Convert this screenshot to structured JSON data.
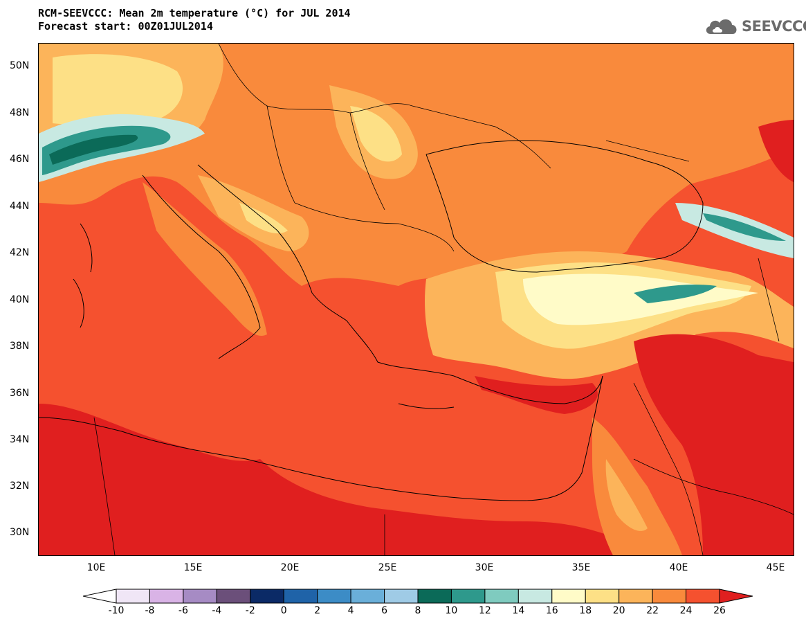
{
  "title": {
    "line1": "RCM-SEEVCCC: Mean 2m temperature (°C) for JUL 2014",
    "line2": "Forecast start: 00Z01JUL2014"
  },
  "logo": {
    "text": "SEEVCCC",
    "icon": "cloud-logo-icon"
  },
  "map": {
    "lat_labels": [
      "50N",
      "48N",
      "46N",
      "44N",
      "42N",
      "40N",
      "38N",
      "36N",
      "34N",
      "32N",
      "30N"
    ],
    "lon_labels": [
      "10E",
      "15E",
      "20E",
      "25E",
      "30E",
      "35E",
      "40E",
      "45E"
    ],
    "lon_range": [
      7,
      46
    ],
    "lat_range": [
      29,
      51
    ],
    "variable": "Mean 2m temperature",
    "unit": "°C"
  },
  "colorbar": {
    "labels": [
      "-10",
      "-8",
      "-6",
      "-4",
      "-2",
      "0",
      "2",
      "4",
      "6",
      "8",
      "10",
      "12",
      "14",
      "16",
      "18",
      "20",
      "22",
      "24",
      "26"
    ],
    "colors": [
      "#ffffff",
      "#f0e6f6",
      "#d9b3e6",
      "#a68bc4",
      "#6b4f7a",
      "#0b2a66",
      "#1f63a8",
      "#3c8cc6",
      "#6aafd9",
      "#9fcbe6",
      "#0b6a58",
      "#2e998c",
      "#7fcbbf",
      "#c8e9e2",
      "#fffbc8",
      "#fde086",
      "#fcb45a",
      "#f98a3c",
      "#f5512f",
      "#e01f1f"
    ]
  }
}
